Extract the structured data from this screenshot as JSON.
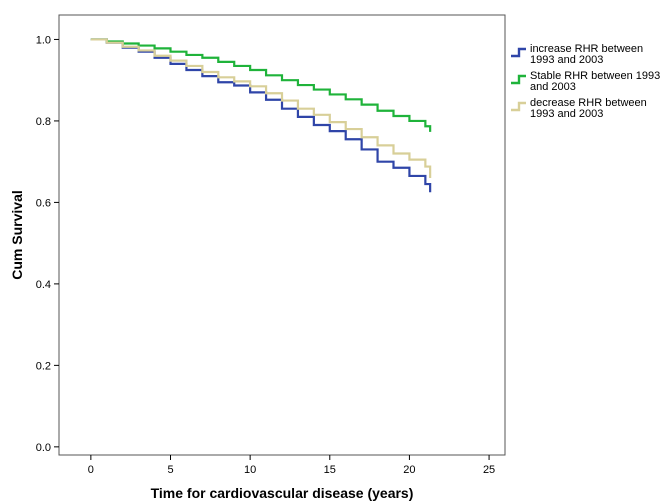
{
  "chart_data": {
    "type": "line",
    "xlabel": "Time for cardiovascular disease (years)",
    "ylabel": "Cum Survival",
    "xlim": [
      -2,
      26
    ],
    "ylim": [
      -0.02,
      1.06
    ],
    "x_ticks": [
      0,
      5,
      10,
      15,
      20,
      25
    ],
    "y_ticks": [
      0.0,
      0.2,
      0.4,
      0.6,
      0.8,
      1.0
    ],
    "x_tick_labels": [
      "0",
      "5",
      "10",
      "15",
      "20",
      "25"
    ],
    "y_tick_labels": [
      "0.0",
      "0.2",
      "0.4",
      "0.6",
      "0.8",
      "1.0"
    ],
    "step": true,
    "grid": false,
    "legend_position": "right",
    "series": [
      {
        "name_lines": [
          "increase RHR between",
          "1993 and 2003"
        ],
        "color": "#2f45a8",
        "x": [
          0,
          1,
          2,
          3,
          4,
          5,
          6,
          7,
          8,
          9,
          10,
          11,
          12,
          13,
          14,
          15,
          16,
          17,
          18,
          19,
          20,
          21,
          21.3
        ],
        "y": [
          1.0,
          0.992,
          0.98,
          0.97,
          0.955,
          0.94,
          0.925,
          0.91,
          0.895,
          0.887,
          0.87,
          0.852,
          0.83,
          0.81,
          0.79,
          0.775,
          0.755,
          0.73,
          0.7,
          0.685,
          0.665,
          0.645,
          0.625
        ]
      },
      {
        "name_lines": [
          "Stable RHR between 1993",
          "and 2003"
        ],
        "color": "#1fb33a",
        "x": [
          0,
          1,
          2,
          3,
          4,
          5,
          6,
          7,
          8,
          9,
          10,
          11,
          12,
          13,
          14,
          15,
          16,
          17,
          18,
          19,
          20,
          21,
          21.3
        ],
        "y": [
          1.0,
          0.995,
          0.99,
          0.985,
          0.978,
          0.97,
          0.962,
          0.955,
          0.945,
          0.935,
          0.925,
          0.912,
          0.9,
          0.888,
          0.877,
          0.865,
          0.853,
          0.84,
          0.825,
          0.812,
          0.8,
          0.787,
          0.773
        ]
      },
      {
        "name_lines": [
          "decrease RHR between",
          "1993 and 2003"
        ],
        "color": "#d8cf98",
        "x": [
          0,
          1,
          2,
          3,
          4,
          5,
          6,
          7,
          8,
          9,
          10,
          11,
          12,
          13,
          14,
          15,
          16,
          17,
          18,
          19,
          20,
          21,
          21.3
        ],
        "y": [
          1.0,
          0.992,
          0.982,
          0.973,
          0.96,
          0.948,
          0.935,
          0.92,
          0.907,
          0.897,
          0.885,
          0.868,
          0.85,
          0.83,
          0.815,
          0.797,
          0.78,
          0.76,
          0.74,
          0.72,
          0.705,
          0.688,
          0.66
        ]
      }
    ]
  }
}
